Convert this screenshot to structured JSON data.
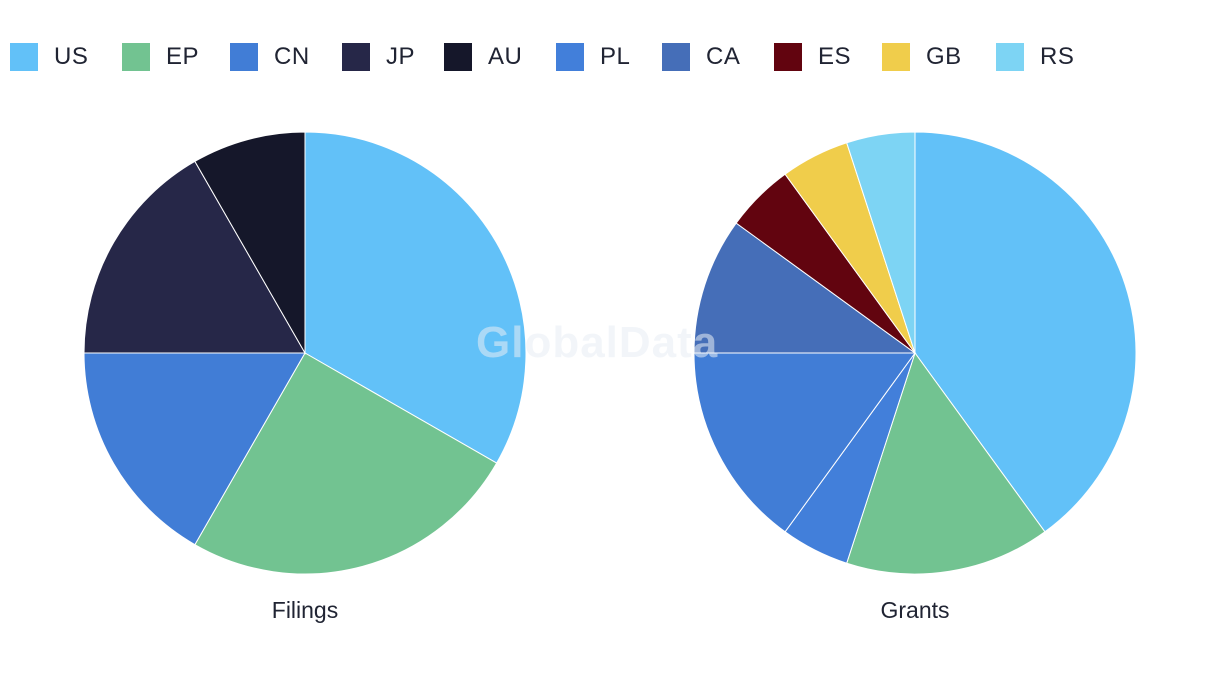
{
  "legend": [
    {
      "label": "US",
      "color": "#62C1F8"
    },
    {
      "label": "EP",
      "color": "#72C391"
    },
    {
      "label": "CN",
      "color": "#417DD6"
    },
    {
      "label": "JP",
      "color": "#262748"
    },
    {
      "label": "AU",
      "color": "#15172A"
    },
    {
      "label": "PL",
      "color": "#427FDA"
    },
    {
      "label": "CA",
      "color": "#456EB8"
    },
    {
      "label": "ES",
      "color": "#62040F"
    },
    {
      "label": "GB",
      "color": "#F0CD4B"
    },
    {
      "label": "RS",
      "color": "#7DD4F4"
    }
  ],
  "watermark": "GlobalData",
  "chart_data": [
    {
      "type": "pie",
      "title": "Filings",
      "labels": [
        "US",
        "EP",
        "CN",
        "JP",
        "AU"
      ],
      "values": [
        33.3,
        25.0,
        16.7,
        16.7,
        8.3
      ],
      "unit": "%",
      "start_angle": "12 o'clock",
      "direction": "clockwise"
    },
    {
      "type": "pie",
      "title": "Grants",
      "labels": [
        "US",
        "EP",
        "PL",
        "CN",
        "CA",
        "ES",
        "GB",
        "RS"
      ],
      "values": [
        40.0,
        15.0,
        5.0,
        15.0,
        10.0,
        5.0,
        5.0,
        5.0
      ],
      "unit": "%",
      "start_angle": "12 o'clock",
      "direction": "clockwise"
    }
  ]
}
